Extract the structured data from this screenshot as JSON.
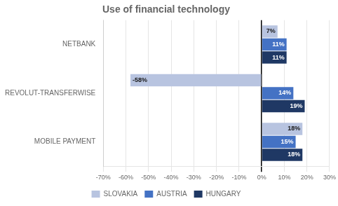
{
  "chart_data": {
    "type": "bar",
    "orientation": "horizontal",
    "title": "Use of financial technology",
    "categories": [
      "NETBANK",
      "REVOLUT-TRANSFERWISE",
      "MOBILE PAYMENT"
    ],
    "series": [
      {
        "name": "SLOVAKIA",
        "color": "#b8c4e0",
        "values": [
          7,
          -58,
          18
        ],
        "value_labels": [
          "7%",
          "-58%",
          "18%"
        ]
      },
      {
        "name": "AUSTRIA",
        "color": "#4472c4",
        "values": [
          11,
          14,
          15
        ],
        "value_labels": [
          "11%",
          "14%",
          "15%"
        ]
      },
      {
        "name": "HUNGARY",
        "color": "#1f3864",
        "values": [
          11,
          19,
          18
        ],
        "value_labels": [
          "11%",
          "19%",
          "18%"
        ]
      }
    ],
    "xlim": [
      -70,
      30
    ],
    "xticks": [
      {
        "value": -70,
        "label": "-70%"
      },
      {
        "value": -60,
        "label": "-60%"
      },
      {
        "value": -50,
        "label": "-50%"
      },
      {
        "value": -40,
        "label": "-40%"
      },
      {
        "value": -30,
        "label": "-30%"
      },
      {
        "value": -20,
        "label": "-20%"
      },
      {
        "value": -10,
        "label": "-10%"
      },
      {
        "value": 0,
        "label": "0%"
      },
      {
        "value": 10,
        "label": "10%"
      },
      {
        "value": 20,
        "label": "20%"
      },
      {
        "value": 30,
        "label": "30%"
      }
    ],
    "grid": true,
    "legend": "bottom",
    "data_labels": true
  }
}
